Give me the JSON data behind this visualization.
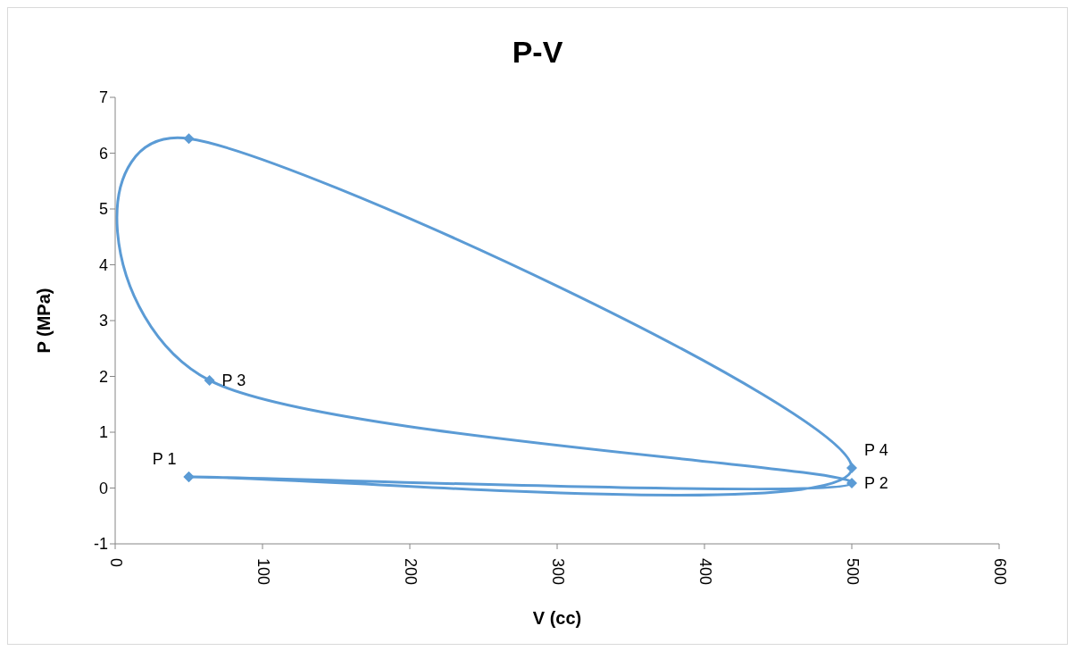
{
  "chart_data": {
    "type": "scatter",
    "title": "P-V",
    "xlabel": "V (cc)",
    "ylabel": "P (MPa)",
    "x": [
      50,
      500,
      64,
      50,
      500,
      50
    ],
    "series": [
      {
        "color": "#5b9bd5",
        "values": [
          0.2,
          0.09,
          1.93,
          6.26,
          0.36,
          0.2
        ]
      }
    ],
    "xlim": [
      0,
      600
    ],
    "xticks": [
      0,
      100,
      200,
      300,
      400,
      500,
      600
    ],
    "ylim": [
      -1,
      7
    ],
    "yticks": [
      -1,
      0,
      1,
      2,
      3,
      4,
      5,
      6,
      7
    ],
    "grid": false,
    "legend": false,
    "marker": "diamond",
    "line_style": "solid",
    "annotations": [
      {
        "text": "P 1",
        "x": 50,
        "y": 0.2
      },
      {
        "text": "P 2",
        "x": 500,
        "y": 0.09
      },
      {
        "text": "P 3",
        "x": 64,
        "y": 1.93
      },
      {
        "text": "P 4",
        "x": 500,
        "y": 0.36
      }
    ]
  }
}
